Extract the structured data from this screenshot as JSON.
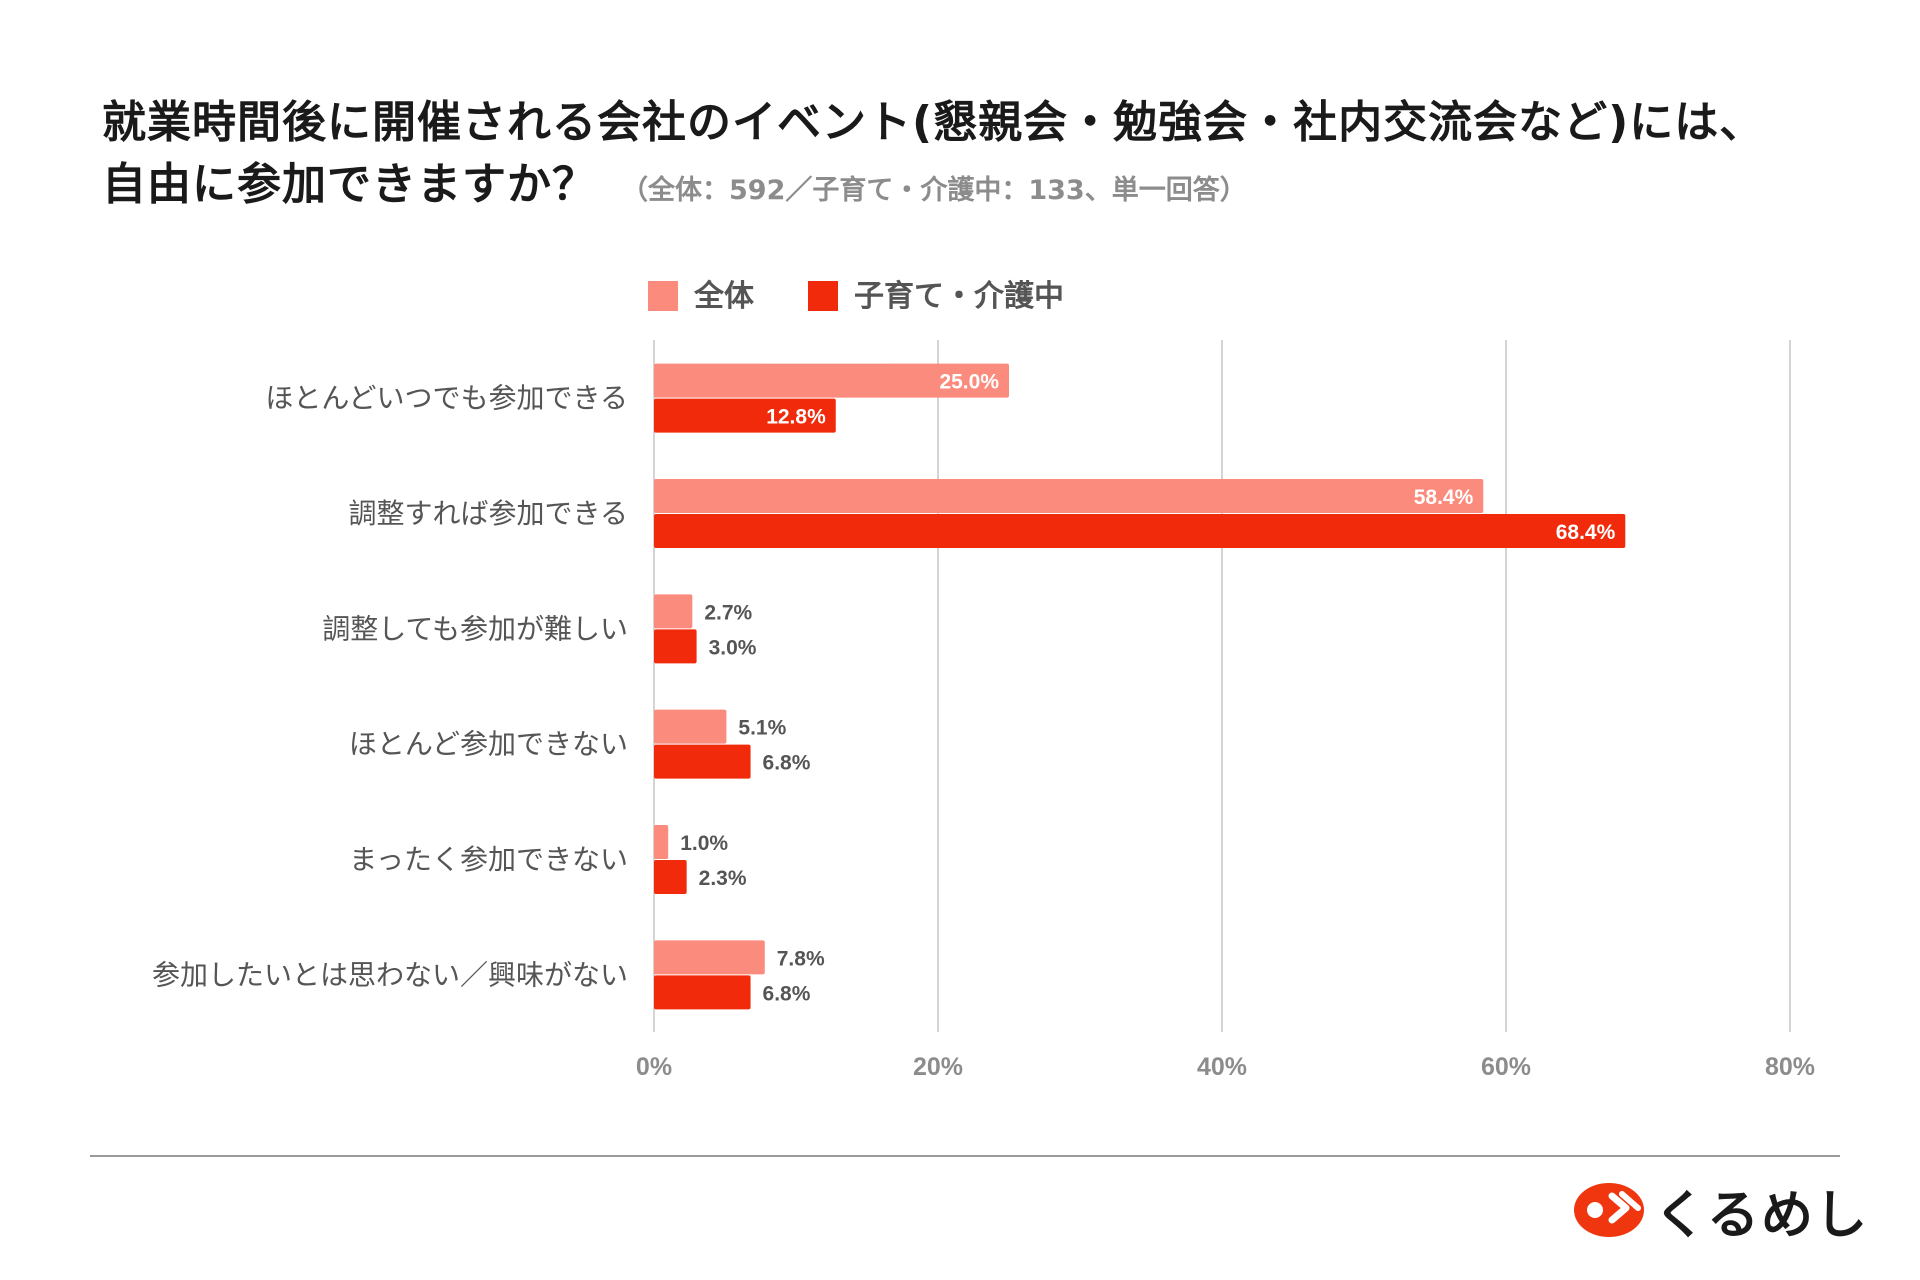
{
  "title": {
    "line1": "就業時間後に開催される会社のイベント(懇親会・勉強会・社内交流会など)には、",
    "line2": "自由に参加できますか？",
    "note": "（全体：592／子育て・介護中：133、単一回答）"
  },
  "colors": {
    "series1": "#fb8b7c",
    "series2": "#f02a0a",
    "grid": "#d4d4d4",
    "tick": "#8c8c8c",
    "label": "#555555"
  },
  "chart_data": {
    "type": "bar",
    "orientation": "horizontal",
    "categories": [
      "ほとんどいつでも参加できる",
      "調整すれば参加できる",
      "調整しても参加が難しい",
      "ほとんど参加できない",
      "まったく参加できない",
      "参加したいとは思わない／興味がない"
    ],
    "series": [
      {
        "name": "全体",
        "color": "#fb8b7c",
        "values": [
          25.0,
          58.4,
          2.7,
          5.1,
          1.0,
          7.8
        ]
      },
      {
        "name": "子育て・介護中",
        "color": "#f02a0a",
        "values": [
          12.8,
          68.4,
          3.0,
          6.8,
          2.3,
          6.8
        ]
      }
    ],
    "xlim": [
      0,
      80
    ],
    "xticks": [
      0,
      20,
      40,
      60,
      80
    ],
    "tick_format": "%",
    "legend_position": "top",
    "grid": true
  },
  "logo": {
    "text": "くるめし"
  }
}
